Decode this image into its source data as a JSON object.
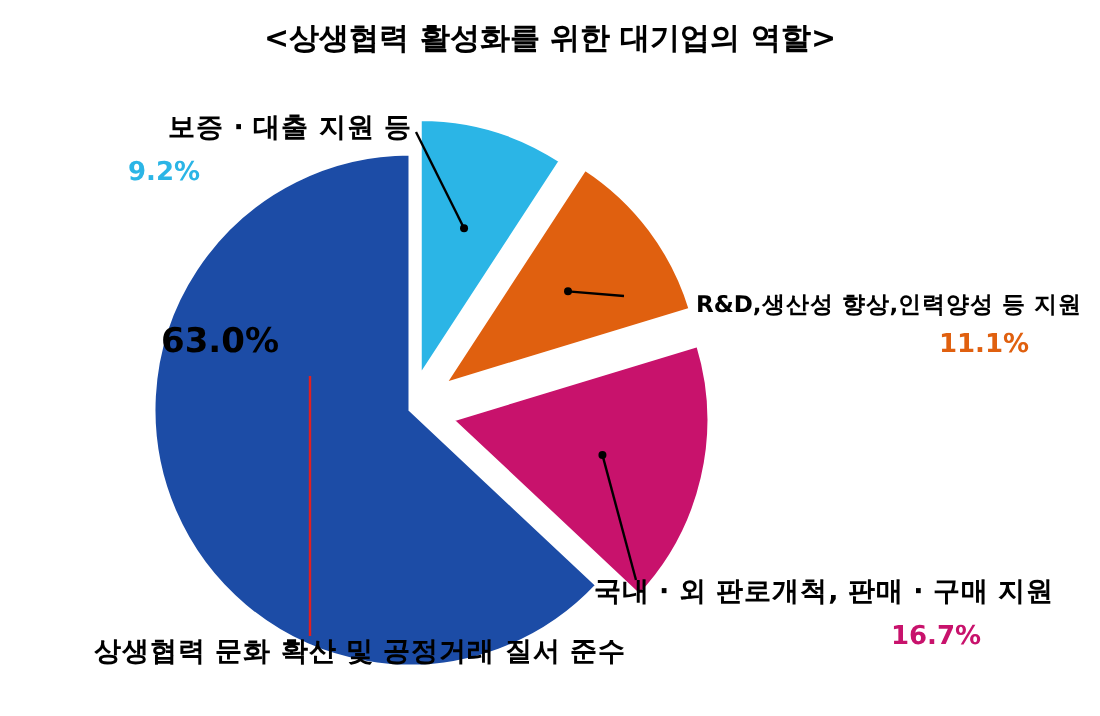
{
  "chart_data": {
    "type": "pie",
    "title": "<상생협력 활성화를 위한 대기업의 역할>",
    "categories": [
      "보증 · 대출 지원 등",
      "R&D,생산성 향상,인력양성 등 지원",
      "국내 · 외 판로개척, 판매 · 구매 지원",
      "상생협력 문화 확산 및 공정거래 질서 준수"
    ],
    "values": [
      9.2,
      11.1,
      16.7,
      63.0
    ],
    "colors": [
      "#2bb5e6",
      "#e0600f",
      "#c8126c",
      "#1c4ca6"
    ],
    "value_labels": [
      "9.2%",
      "11.1%",
      "16.7%",
      "63.0%"
    ]
  }
}
